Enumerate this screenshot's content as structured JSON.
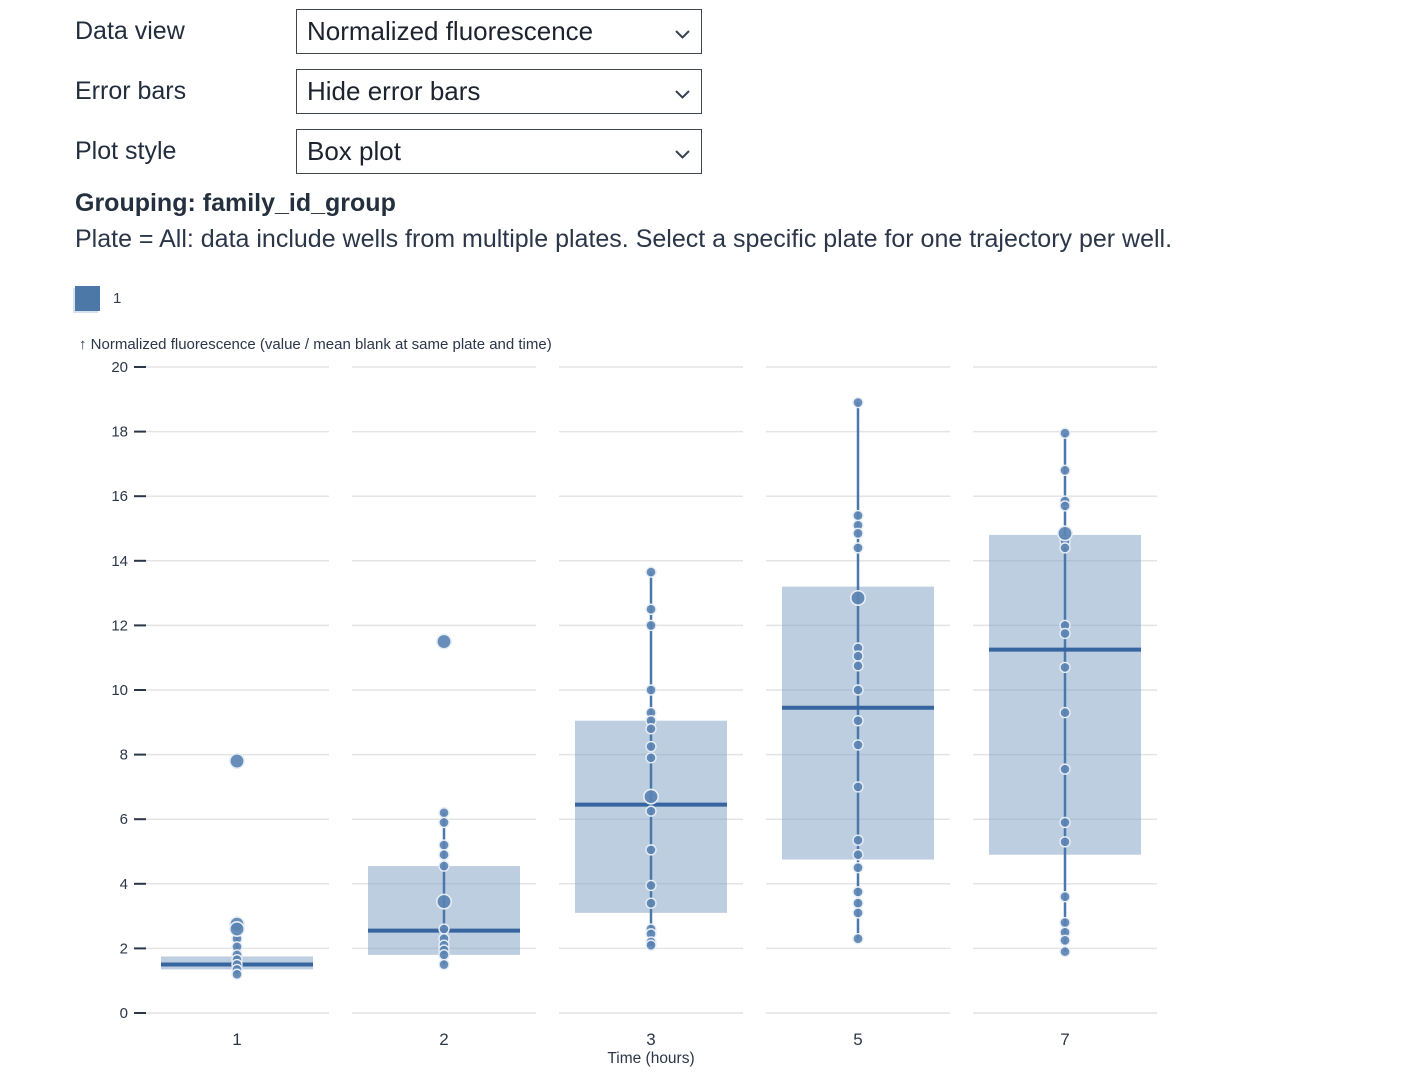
{
  "controls": {
    "rows": [
      {
        "label": "Data view",
        "value": "Normalized fluorescence"
      },
      {
        "label": "Error bars",
        "value": "Hide error bars"
      },
      {
        "label": "Plot style",
        "value": "Box plot"
      }
    ]
  },
  "grouping": {
    "text": "Grouping: family_id_group"
  },
  "note": {
    "text": "Plate = All: data include wells from multiple plates. Select a specific plate for one trajectory per well."
  },
  "legend": {
    "items": [
      {
        "label": "1",
        "color": "#4c78a8"
      }
    ]
  },
  "chart_data": {
    "type": "box",
    "y_title": "↑ Normalized fluorescence (value / mean blank at same plate and time)",
    "xlabel": "Time (hours)",
    "ylim": [
      0,
      20
    ],
    "yticks": [
      0,
      2,
      4,
      6,
      8,
      10,
      12,
      14,
      16,
      18,
      20
    ],
    "grid": true,
    "categories": [
      "1",
      "2",
      "3",
      "5",
      "7"
    ],
    "boxes": [
      {
        "category": "1",
        "q1": 1.35,
        "median": 1.5,
        "q3": 1.75,
        "whisker_low": 1.15,
        "whisker_high": 2.4,
        "points": [
          2.3,
          2.05,
          1.8,
          1.65,
          1.5,
          1.35,
          1.2
        ],
        "points_large": [
          7.8,
          2.75,
          2.6
        ]
      },
      {
        "category": "2",
        "q1": 1.8,
        "median": 2.55,
        "q3": 4.55,
        "whisker_low": 1.5,
        "whisker_high": 6.2,
        "points": [
          6.2,
          5.9,
          5.2,
          4.9,
          4.55,
          2.6,
          2.3,
          2.1,
          1.95,
          1.8,
          1.5
        ],
        "points_large": [
          11.5,
          3.45
        ]
      },
      {
        "category": "3",
        "q1": 3.1,
        "median": 6.45,
        "q3": 9.05,
        "whisker_low": 2.1,
        "whisker_high": 13.65,
        "points": [
          13.65,
          12.5,
          12.0,
          10.0,
          9.3,
          9.05,
          8.8,
          8.25,
          7.9,
          6.25,
          5.05,
          3.95,
          3.4,
          2.6,
          2.45,
          2.2,
          2.1
        ],
        "points_large": [
          6.7
        ]
      },
      {
        "category": "5",
        "q1": 4.75,
        "median": 9.45,
        "q3": 13.2,
        "whisker_low": 2.3,
        "whisker_high": 18.9,
        "points": [
          18.9,
          15.4,
          15.1,
          14.85,
          14.4,
          11.3,
          11.05,
          10.75,
          10.0,
          9.05,
          8.3,
          7.0,
          5.35,
          4.9,
          4.5,
          3.75,
          3.4,
          3.1,
          2.3
        ],
        "points_large": [
          12.85
        ]
      },
      {
        "category": "7",
        "q1": 4.9,
        "median": 11.25,
        "q3": 14.8,
        "whisker_low": 1.9,
        "whisker_high": 17.95,
        "points": [
          17.95,
          16.8,
          15.85,
          15.7,
          14.6,
          14.4,
          12.0,
          11.75,
          10.7,
          9.3,
          7.55,
          5.9,
          5.3,
          3.6,
          2.8,
          2.5,
          2.25,
          1.9
        ],
        "points_large": [
          14.85
        ]
      }
    ],
    "style": {
      "box_fill": "#7d9ec4",
      "box_fill_opacity": 0.5,
      "median_color": "#36659f",
      "whisker_color": "#4a78ab",
      "point_fill": "#5b83b2",
      "point_stroke": "#e8eef6",
      "grid_color": "#e4e4e6",
      "axis_text_color": "#2b3648"
    }
  }
}
